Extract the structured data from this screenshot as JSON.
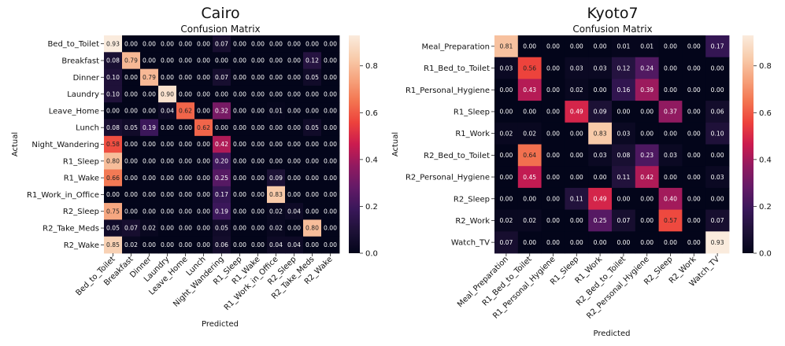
{
  "colorbar_ticks": [
    "0.0",
    "0.2",
    "0.4",
    "0.6",
    "0.8"
  ],
  "chart_data": [
    {
      "type": "heatmap",
      "title": "Cairo",
      "subtitle": "Confusion Matrix",
      "xlabel": "Predicted",
      "ylabel": "Actual",
      "vmin": 0.0,
      "vmax": 0.93,
      "labels": [
        "Bed_to_Toilet",
        "Breakfast",
        "Dinner",
        "Laundry",
        "Leave_Home",
        "Lunch",
        "Night_Wandering",
        "R1_Sleep",
        "R1_Wake",
        "R1_Work_in_Office",
        "R2_Sleep",
        "R2_Take_Meds",
        "R2_Wake"
      ],
      "values": [
        [
          0.93,
          0.0,
          0.0,
          0.0,
          0.0,
          0.0,
          0.07,
          0.0,
          0.0,
          0.0,
          0.0,
          0.0,
          0.0
        ],
        [
          0.08,
          0.79,
          0.0,
          0.0,
          0.0,
          0.0,
          0.0,
          0.0,
          0.0,
          0.0,
          0.0,
          0.12,
          0.0
        ],
        [
          0.1,
          0.0,
          0.79,
          0.0,
          0.0,
          0.0,
          0.07,
          0.0,
          0.0,
          0.0,
          0.0,
          0.05,
          0.0
        ],
        [
          0.1,
          0.0,
          0.0,
          0.9,
          0.0,
          0.0,
          0.0,
          0.0,
          0.0,
          0.0,
          0.0,
          0.0,
          0.0
        ],
        [
          0.0,
          0.0,
          0.0,
          0.04,
          0.62,
          0.0,
          0.32,
          0.0,
          0.0,
          0.01,
          0.0,
          0.0,
          0.0
        ],
        [
          0.08,
          0.05,
          0.19,
          0.0,
          0.0,
          0.62,
          0.0,
          0.0,
          0.0,
          0.0,
          0.0,
          0.05,
          0.0
        ],
        [
          0.58,
          0.0,
          0.0,
          0.0,
          0.0,
          0.0,
          0.42,
          0.0,
          0.0,
          0.0,
          0.0,
          0.0,
          0.0
        ],
        [
          0.8,
          0.0,
          0.0,
          0.0,
          0.0,
          0.0,
          0.2,
          0.0,
          0.0,
          0.0,
          0.0,
          0.0,
          0.0
        ],
        [
          0.66,
          0.0,
          0.0,
          0.0,
          0.0,
          0.0,
          0.25,
          0.0,
          0.0,
          0.09,
          0.0,
          0.0,
          0.0
        ],
        [
          0.0,
          0.0,
          0.0,
          0.0,
          0.0,
          0.0,
          0.17,
          0.0,
          0.0,
          0.83,
          0.0,
          0.0,
          0.0
        ],
        [
          0.75,
          0.0,
          0.0,
          0.0,
          0.0,
          0.0,
          0.19,
          0.0,
          0.0,
          0.02,
          0.04,
          0.0,
          0.0
        ],
        [
          0.05,
          0.07,
          0.02,
          0.0,
          0.0,
          0.0,
          0.05,
          0.0,
          0.0,
          0.02,
          0.0,
          0.8,
          0.0
        ],
        [
          0.85,
          0.02,
          0.0,
          0.0,
          0.0,
          0.0,
          0.06,
          0.0,
          0.0,
          0.04,
          0.04,
          0.0,
          0.0
        ]
      ]
    },
    {
      "type": "heatmap",
      "title": "Kyoto7",
      "subtitle": "Confusion Matrix",
      "xlabel": "Predicted",
      "ylabel": "Actual",
      "vmin": 0.0,
      "vmax": 0.93,
      "labels": [
        "Meal_Preparation",
        "R1_Bed_to_Toilet",
        "R1_Personal_Hygiene",
        "R1_Sleep",
        "R1_Work",
        "R2_Bed_to_Toilet",
        "R2_Personal_Hygiene",
        "R2_Sleep",
        "R2_Work",
        "Watch_TV"
      ],
      "values": [
        [
          0.81,
          0.0,
          0.0,
          0.0,
          0.0,
          0.01,
          0.01,
          0.0,
          0.0,
          0.17
        ],
        [
          0.03,
          0.56,
          0.0,
          0.03,
          0.03,
          0.12,
          0.24,
          0.0,
          0.0,
          0.0
        ],
        [
          0.0,
          0.43,
          0.0,
          0.02,
          0.0,
          0.16,
          0.39,
          0.0,
          0.0,
          0.0
        ],
        [
          0.0,
          0.0,
          0.0,
          0.49,
          0.09,
          0.0,
          0.0,
          0.37,
          0.0,
          0.06
        ],
        [
          0.02,
          0.02,
          0.0,
          0.0,
          0.83,
          0.03,
          0.0,
          0.0,
          0.0,
          0.1
        ],
        [
          0.0,
          0.64,
          0.0,
          0.0,
          0.03,
          0.08,
          0.23,
          0.03,
          0.0,
          0.0
        ],
        [
          0.0,
          0.45,
          0.0,
          0.0,
          0.0,
          0.11,
          0.42,
          0.0,
          0.0,
          0.03
        ],
        [
          0.0,
          0.0,
          0.0,
          0.11,
          0.49,
          0.0,
          0.0,
          0.4,
          0.0,
          0.0
        ],
        [
          0.02,
          0.02,
          0.0,
          0.0,
          0.25,
          0.07,
          0.0,
          0.57,
          0.0,
          0.07
        ],
        [
          0.07,
          0.0,
          0.0,
          0.0,
          0.0,
          0.0,
          0.0,
          0.0,
          0.0,
          0.93
        ]
      ]
    }
  ]
}
